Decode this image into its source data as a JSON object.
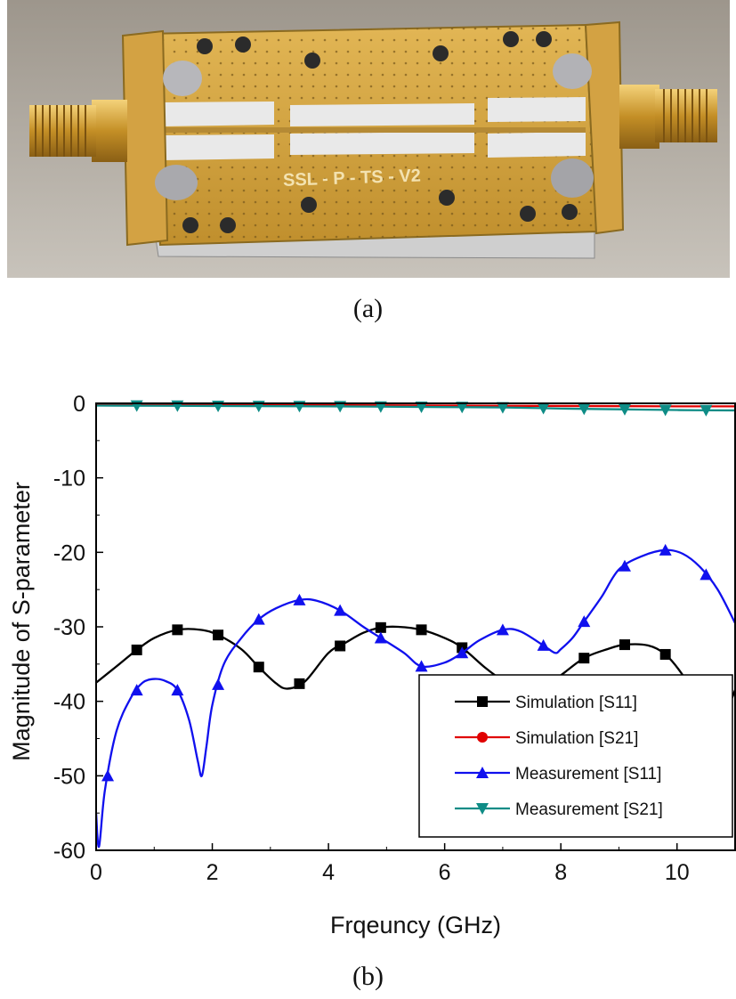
{
  "captions": {
    "a": "(a)",
    "b": "(b)"
  },
  "photo": {
    "board_text": "SSL - P - TS - V2"
  },
  "chart_data": {
    "type": "line",
    "xlabel": "Frqeuncy (GHz)",
    "ylabel": "Magnitude of S-parameter",
    "xlim": [
      0,
      11
    ],
    "ylim": [
      -60,
      0
    ],
    "xticks": [
      0,
      2,
      4,
      6,
      8,
      10
    ],
    "yticks": [
      0,
      -10,
      -20,
      -30,
      -40,
      -50,
      -60
    ],
    "legend_position": "bottom-right",
    "series": [
      {
        "name": "Simulation [S11]",
        "color": "#000000",
        "marker": "square",
        "x": [
          0,
          0.4,
          0.7,
          1.0,
          1.4,
          1.8,
          2.1,
          2.5,
          2.8,
          3.1,
          3.3,
          3.6,
          4.0,
          4.3,
          4.6,
          4.9,
          5.2,
          5.6,
          6.0,
          6.3,
          6.7,
          7.0,
          7.4,
          7.7,
          8.0,
          8.4,
          8.8,
          9.1,
          9.5,
          9.8,
          10.1,
          10.4,
          10.7,
          11.0
        ],
        "y": [
          -37.5,
          -35,
          -33.1,
          -31.5,
          -30.4,
          -30.4,
          -31.1,
          -33,
          -35.4,
          -37.6,
          -38.3,
          -37.3,
          -33.5,
          -32.1,
          -30.8,
          -30.1,
          -30,
          -30.4,
          -31.5,
          -32.8,
          -35.5,
          -37.2,
          -38.9,
          -38,
          -36.5,
          -34.2,
          -33,
          -32.4,
          -32.5,
          -33.7,
          -36.5,
          -40.5,
          -43.5,
          -38.5
        ],
        "markers_x": [
          0.7,
          1.4,
          2.1,
          2.8,
          3.5,
          4.2,
          4.9,
          5.6,
          6.3,
          7.0,
          7.7,
          8.4,
          9.1,
          9.8
        ]
      },
      {
        "name": "Simulation [S21]",
        "color": "#e00000",
        "marker": "circle",
        "x": [
          0,
          2,
          4,
          6,
          8,
          10,
          11
        ],
        "y": [
          -0.2,
          -0.2,
          -0.25,
          -0.3,
          -0.35,
          -0.4,
          -0.4
        ],
        "markers_x": []
      },
      {
        "name": "Measurement [S11]",
        "color": "#1010ee",
        "marker": "triangle-up",
        "x": [
          0,
          0.05,
          0.15,
          0.35,
          0.6,
          0.8,
          1.0,
          1.2,
          1.4,
          1.6,
          1.75,
          1.82,
          1.9,
          2.0,
          2.2,
          2.5,
          2.8,
          3.1,
          3.5,
          3.8,
          4.2,
          4.6,
          4.9,
          5.3,
          5.6,
          6.0,
          6.3,
          6.6,
          7.0,
          7.3,
          7.7,
          7.9,
          8.0,
          8.2,
          8.4,
          8.7,
          9.0,
          9.4,
          9.8,
          10.1,
          10.4,
          10.7,
          11.0
        ],
        "y": [
          -55,
          -59.5,
          -52,
          -44,
          -39.5,
          -37.5,
          -37,
          -37.3,
          -38.5,
          -42.5,
          -48,
          -50,
          -46,
          -40.5,
          -35,
          -31.5,
          -29,
          -27.5,
          -26.4,
          -26.5,
          -27.8,
          -30,
          -31.5,
          -33.5,
          -35.3,
          -34.8,
          -33.5,
          -31.8,
          -30.4,
          -30.6,
          -32.5,
          -33.5,
          -33,
          -31.5,
          -29.3,
          -26,
          -22.3,
          -20.5,
          -19.7,
          -20.2,
          -22,
          -25,
          -29.5
        ],
        "markers_x": [
          0.2,
          0.7,
          1.4,
          2.1,
          2.8,
          3.5,
          4.2,
          4.9,
          5.6,
          6.3,
          7.0,
          7.7,
          8.4,
          9.1,
          9.8,
          10.5
        ]
      },
      {
        "name": "Measurement [S21]",
        "color": "#0e8c86",
        "marker": "triangle-down",
        "x": [
          0,
          2,
          4,
          6,
          7,
          8,
          9,
          10,
          11
        ],
        "y": [
          -0.3,
          -0.35,
          -0.4,
          -0.5,
          -0.55,
          -0.7,
          -0.8,
          -0.9,
          -0.95
        ],
        "markers_x": [
          0.7,
          1.4,
          2.1,
          2.8,
          3.5,
          4.2,
          4.9,
          5.6,
          6.3,
          7.0,
          7.7,
          8.4,
          9.1,
          9.8,
          10.5
        ]
      }
    ]
  }
}
